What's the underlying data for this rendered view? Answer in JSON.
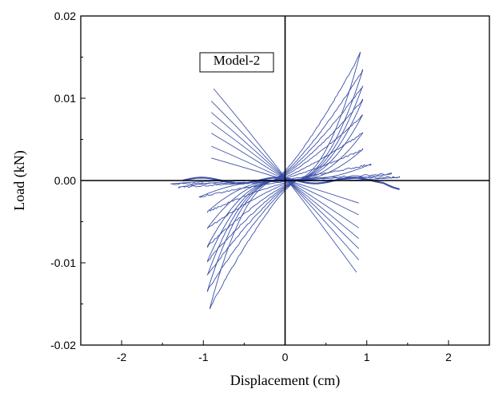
{
  "chart_data": {
    "type": "line",
    "title": "",
    "xlabel": "Displacement (cm)",
    "ylabel": "Load (kN)",
    "xlim": [
      -2.5,
      2.5
    ],
    "ylim": [
      -0.02,
      0.02
    ],
    "x_ticks": [
      -2,
      -1,
      0,
      1,
      2
    ],
    "x_tick_labels": [
      "-2",
      "-1",
      "0",
      "1",
      "2"
    ],
    "y_ticks": [
      -0.02,
      -0.01,
      0.0,
      0.01,
      0.02
    ],
    "y_tick_labels": [
      "-0.02",
      "-0.01",
      "0.00",
      "0.01",
      "0.02"
    ],
    "grid": false,
    "zero_lines": true,
    "annotation": "Model-2",
    "line_color": "#3b4fa8",
    "series": [
      {
        "description_cycles": [
          {
            "x_max": 0.92,
            "y_max": 0.0155,
            "x_min": -0.92,
            "y_min": -0.0155
          },
          {
            "x_max": 0.95,
            "y_max": 0.0134,
            "x_min": -0.95,
            "y_min": -0.0134
          },
          {
            "x_max": 0.95,
            "y_max": 0.0115,
            "x_min": -0.95,
            "y_min": -0.0115
          },
          {
            "x_max": 0.95,
            "y_max": 0.0098,
            "x_min": -0.95,
            "y_min": -0.0098
          },
          {
            "x_max": 0.95,
            "y_max": 0.008,
            "x_min": -0.95,
            "y_min": -0.008
          },
          {
            "x_max": 0.95,
            "y_max": 0.0058,
            "x_min": -0.95,
            "y_min": -0.0058
          },
          {
            "x_max": 0.95,
            "y_max": 0.0038,
            "x_min": -0.95,
            "y_min": -0.0038
          },
          {
            "x_max": 1.05,
            "y_max": 0.002,
            "x_min": -1.05,
            "y_min": -0.002
          },
          {
            "x_max": 1.3,
            "y_max": 0.0008,
            "x_min": -1.3,
            "y_min": -0.0008
          },
          {
            "x_max": 1.4,
            "y_max": 0.0004,
            "x_min": -1.4,
            "y_min": -0.0004
          }
        ]
      }
    ]
  }
}
